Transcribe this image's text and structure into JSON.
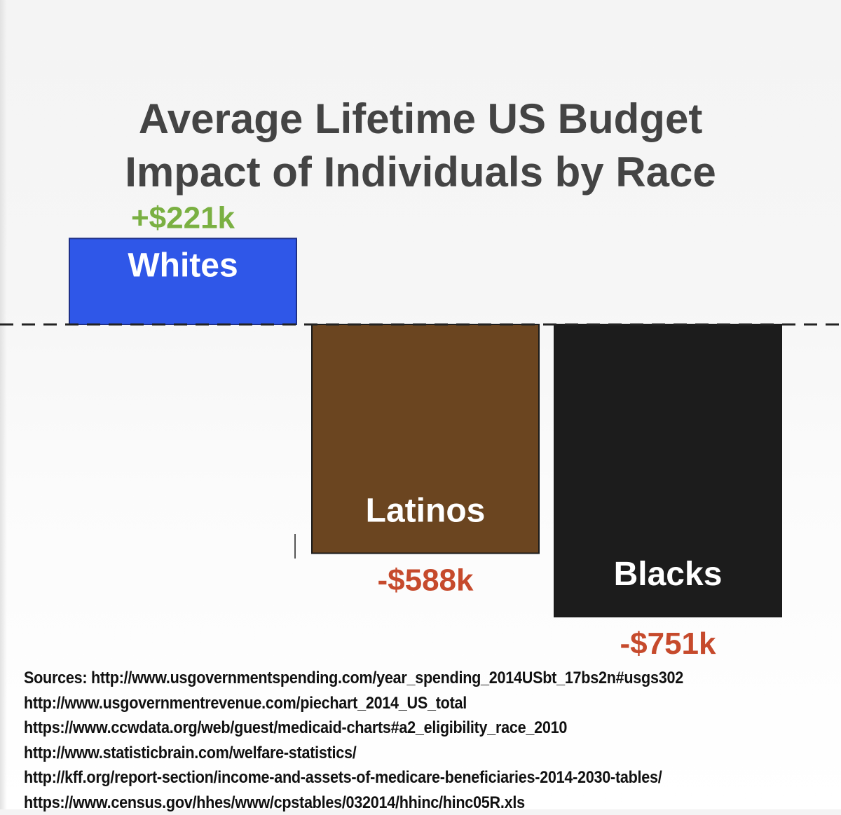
{
  "chart_data": {
    "type": "bar",
    "title": "Average Lifetime US Budget Impact of Individuals by Race",
    "title_lines": [
      "Average Lifetime US",
      "Budget",
      "Impact of Individuals by Race"
    ],
    "categories": [
      "Whites",
      "Latinos",
      "Blacks"
    ],
    "values": [
      221,
      -588,
      -751
    ],
    "value_labels": [
      "+$221k",
      "-$588k",
      "-$751k"
    ],
    "unit": "k",
    "bar_colors": [
      "#2f57e8",
      "#6b4520",
      "#1c1c1c"
    ],
    "positive_label_color": "#7ab042",
    "negative_label_color": "#c64a2c",
    "title_color": "#444444",
    "xlabel": "",
    "ylabel": "",
    "ylim": [
      -751,
      221
    ],
    "baseline": 0,
    "baseline_style": "dashed",
    "grid": false,
    "legend": "none"
  },
  "sources": [
    "Sources: http://www.usgovernmentspending.com/year_spending_2014USbt_17bs2n#usgs302",
    "http://www.usgovernmentrevenue.com/piechart_2014_US_total",
    "https://www.ccwdata.org/web/guest/medicaid-charts#a2_eligibility_race_2010",
    "http://www.statisticbrain.com/welfare-statistics/",
    "http://kff.org/report-section/income-and-assets-of-medicare-beneficiaries-2014-2030-tables/",
    "https://www.census.gov/hhes/www/cpstables/032014/hhinc/hinc05R.xls"
  ]
}
